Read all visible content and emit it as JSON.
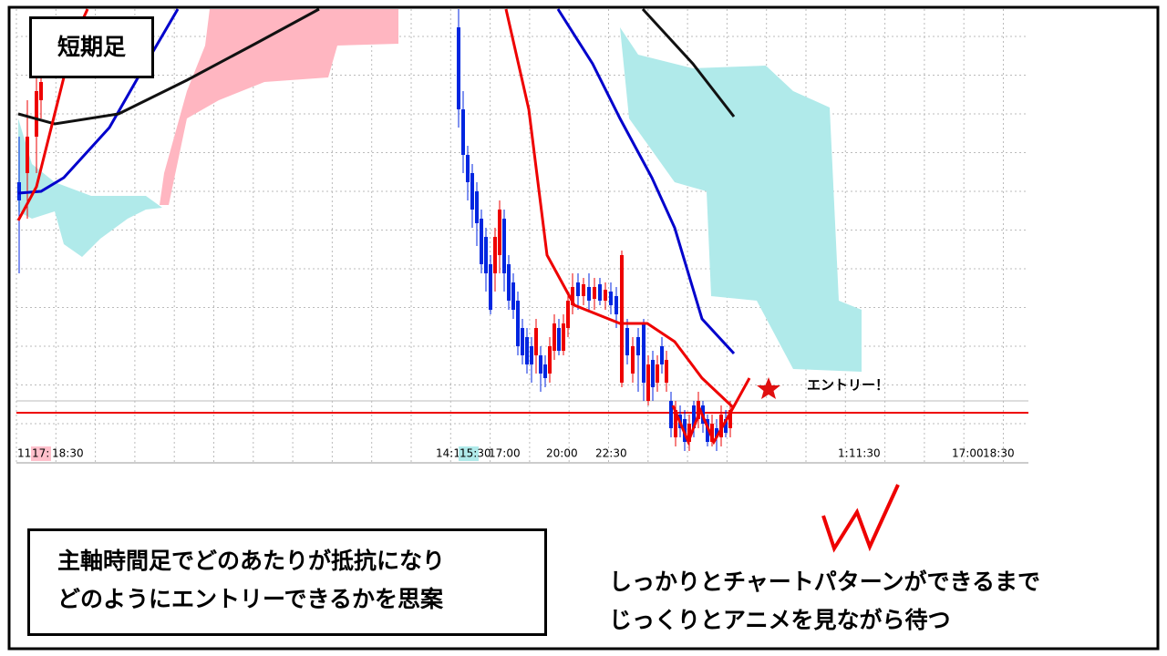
{
  "header": {
    "label": "短期足"
  },
  "time_axis": {
    "labels": [
      "11",
      "17:",
      "18:30",
      "14:1",
      "15:30",
      "17:00",
      "20:00",
      "22:30",
      "1:",
      "11:30",
      "17:00",
      "18:30"
    ]
  },
  "annotation": {
    "text": "エントリー！"
  },
  "notes": {
    "left": [
      "主軸時間足でどのあたりが抵抗になり",
      "どのようにエントリーできるかを思案"
    ],
    "right": [
      "しっかりとチャートパターンができるまで",
      "じっくりとアニメを見ながら待つ"
    ]
  }
}
